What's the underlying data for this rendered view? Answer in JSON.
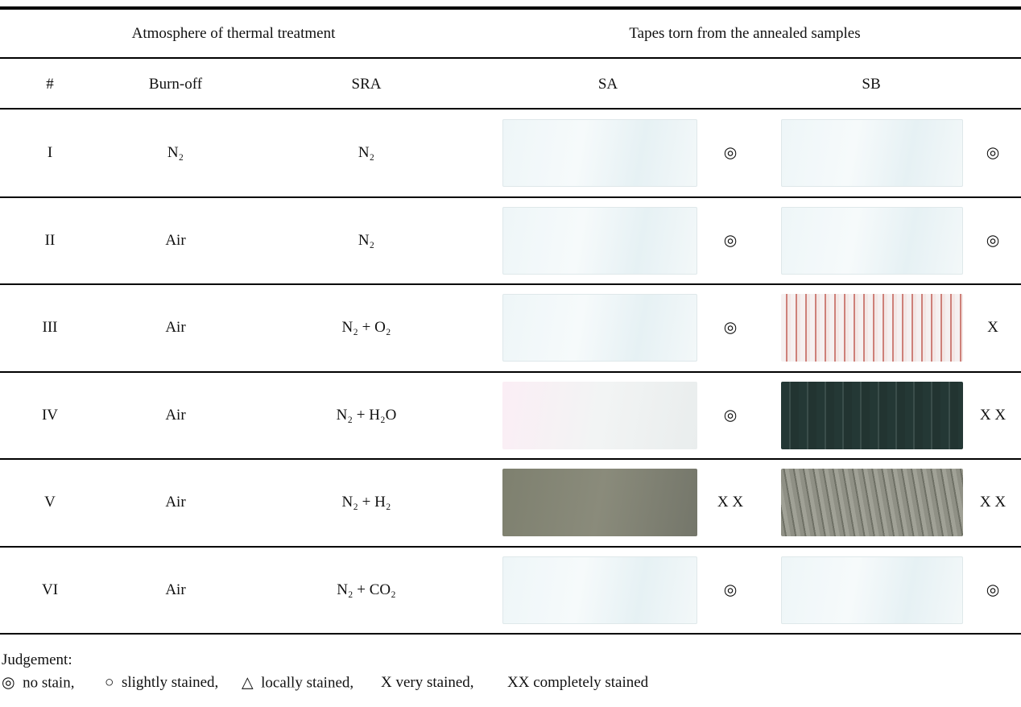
{
  "header": {
    "group_labels": [
      "Atmosphere of thermal treatment",
      "Tapes torn from the annealed samples"
    ],
    "columns": [
      "#",
      "Burn-off",
      "SRA",
      "SA",
      "SB"
    ]
  },
  "rows": [
    {
      "id": "I",
      "burn_off": "N₂",
      "sra": "N₂",
      "sa": "◎",
      "sb": "◎"
    },
    {
      "id": "II",
      "burn_off": "Air",
      "sra": "N₂",
      "sa": "◎",
      "sb": "◎"
    },
    {
      "id": "III",
      "burn_off": "Air",
      "sra": "N₂ + O₂",
      "sa": "◎",
      "sb": "X"
    },
    {
      "id": "IV",
      "burn_off": "Air",
      "sra": "N₂ + H₂O",
      "sa": "◎",
      "sb": "X X"
    },
    {
      "id": "V",
      "burn_off": "Air",
      "sra": "N₂ + H₂",
      "sa": "X X",
      "sb": "X X"
    },
    {
      "id": "VI",
      "burn_off": "Air",
      "sra": "N₂ + CO₂",
      "sa": "◎",
      "sb": "◎"
    }
  ],
  "legend": {
    "title": "Judgement:",
    "items": [
      "◎  no stain,",
      "○  slightly stained,",
      "△  locally stained,",
      "X very stained,",
      "XX completely stained"
    ]
  }
}
